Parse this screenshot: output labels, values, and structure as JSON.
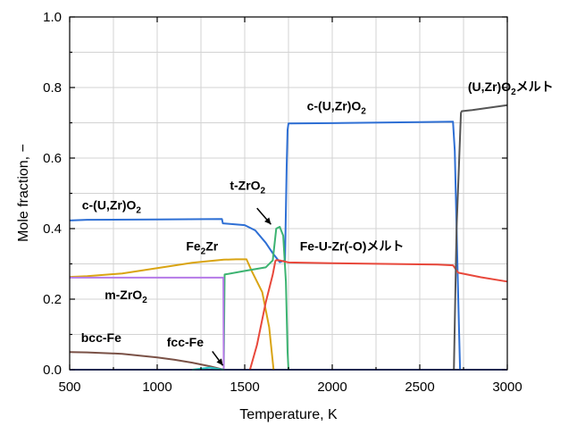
{
  "chart_data": {
    "type": "line",
    "xlabel": "Temperature, K",
    "ylabel": "Mole fraction, −",
    "xlim": [
      500,
      3000
    ],
    "ylim": [
      0,
      1.0
    ],
    "xticks": [
      500,
      1000,
      1500,
      2000,
      2500,
      3000
    ],
    "xtick_labels": [
      "500",
      "1000",
      "1500",
      "2000",
      "2500",
      "3000"
    ],
    "yticks": [
      0.0,
      0.2,
      0.4,
      0.6,
      0.8,
      1.0
    ],
    "ytick_labels": [
      "0.0",
      "0.2",
      "0.4",
      "0.6",
      "0.8",
      "1.0"
    ],
    "grid": true,
    "series": [
      {
        "color": "#5c6cd0",
        "x": [
          500,
          1000,
          1500,
          1530,
          1660,
          1710,
          1760,
          2000,
          2500,
          3000
        ],
        "y": [
          0,
          0,
          0,
          0,
          0,
          0,
          0,
          0,
          0,
          0
        ]
      },
      {
        "color": "#2e6fd4",
        "x": [
          500,
          600,
          1000,
          1370,
          1375,
          1400,
          1500,
          1560,
          1620,
          1660,
          1700,
          1730,
          1740,
          1745,
          1750,
          2000,
          2500,
          2690,
          2700,
          2720,
          2730
        ],
        "y": [
          0.423,
          0.425,
          0.426,
          0.427,
          0.415,
          0.414,
          0.41,
          0.395,
          0.36,
          0.33,
          0.305,
          0.31,
          0.58,
          0.68,
          0.698,
          0.699,
          0.702,
          0.703,
          0.62,
          0.2,
          0.0
        ]
      },
      {
        "color": "#d9a413",
        "x": [
          500,
          600,
          800,
          1000,
          1200,
          1380,
          1450,
          1510,
          1540,
          1600,
          1640,
          1665
        ],
        "y": [
          0.263,
          0.265,
          0.273,
          0.288,
          0.303,
          0.312,
          0.313,
          0.313,
          0.28,
          0.22,
          0.12,
          0.0
        ]
      },
      {
        "color": "#3cb371",
        "x": [
          1380,
          1385,
          1500,
          1620,
          1660,
          1680,
          1700,
          1720,
          1735,
          1745,
          1750
        ],
        "y": [
          0.0,
          0.27,
          0.28,
          0.29,
          0.31,
          0.4,
          0.405,
          0.38,
          0.25,
          0.05,
          0.0
        ]
      },
      {
        "color": "#e8483b",
        "x": [
          1530,
          1570,
          1620,
          1660,
          1675,
          1680,
          1700,
          1750,
          2000,
          2300,
          2600,
          2690,
          2720,
          2850,
          3000
        ],
        "y": [
          0.0,
          0.07,
          0.19,
          0.27,
          0.308,
          0.311,
          0.31,
          0.304,
          0.302,
          0.3,
          0.298,
          0.296,
          0.275,
          0.262,
          0.25
        ]
      },
      {
        "color": "#b57ae8",
        "x": [
          500,
          1378,
          1380
        ],
        "y": [
          0.261,
          0.261,
          0.0
        ]
      },
      {
        "color": "#7a5146",
        "x": [
          500,
          600,
          800,
          1000,
          1100,
          1200,
          1300,
          1380
        ],
        "y": [
          0.05,
          0.049,
          0.045,
          0.035,
          0.028,
          0.02,
          0.01,
          0.0
        ]
      },
      {
        "color": "#2ec7c9",
        "x": [
          1200,
          1300,
          1380
        ],
        "y": [
          0.0,
          0.006,
          0.0
        ]
      },
      {
        "color": "#555555",
        "x": [
          2695,
          2710,
          2735,
          2740,
          2800,
          3000
        ],
        "y": [
          0.0,
          0.4,
          0.728,
          0.733,
          0.736,
          0.75
        ]
      }
    ],
    "annotations": [
      {
        "text": "c-(U,Zr)O",
        "sub": "2",
        "x": 570,
        "y": 0.455
      },
      {
        "text": "c-(U,Zr)O",
        "sub": "2",
        "x": 1855,
        "y": 0.735
      },
      {
        "text": "(U,Zr)O",
        "sub": "2",
        "tail": "メルト",
        "x": 2775,
        "y": 0.79
      },
      {
        "text": "t-ZrO",
        "sub": "2",
        "x": 1415,
        "y": 0.51
      },
      {
        "text": "Fe",
        "sub": "2",
        "tail": "Zr",
        "x": 1165,
        "y": 0.338
      },
      {
        "text": "Fe-U-Zr(-O)メルト",
        "x": 1815,
        "y": 0.338
      },
      {
        "text": "m-ZrO",
        "sub": "2",
        "x": 700,
        "y": 0.2
      },
      {
        "text": "bcc-Fe",
        "x": 565,
        "y": 0.078
      },
      {
        "text": "fcc-Fe",
        "x": 1055,
        "y": 0.066
      }
    ],
    "arrows": [
      {
        "from": [
          1570,
          0.458
        ],
        "to": [
          1650,
          0.412
        ]
      },
      {
        "from": [
          1315,
          0.052
        ],
        "to": [
          1375,
          0.012
        ]
      }
    ]
  }
}
